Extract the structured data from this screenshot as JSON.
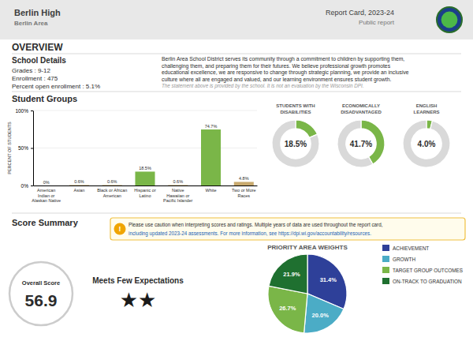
{
  "header": {
    "title": "Berlin High",
    "subtitle": "Berlin Area",
    "report_title": "Report Card, 2023-24",
    "report_note": "Public report"
  },
  "overview": {
    "title": "OVERVIEW",
    "details_title": "School Details",
    "details": [
      "Grades :  9-12",
      "Enrollment :  475",
      "Percent open enrollment :  5.1%"
    ],
    "statement": [
      "Berlin Area School District serves its community through a commitment to children by supporting them,",
      "challenging them, and preparing them for their futures. We believe professional growth promotes",
      "educational excellence, we are responsive to change through strategic planning, we provide an inclusive",
      "culture where all are engaged and valued, and our learning environment ensures student growth."
    ],
    "disclaimer": "The statement above is provided by the school. It is not an evaluation by the Wisconsin DPI."
  },
  "score_summary": {
    "title": "Score Summary",
    "caution_icon": "!",
    "caution": [
      "Please use caution when interpreting scores and ratings. Multiple years of data are used throughout the report card,",
      "including updated 2023-24 assessments. For more information, see https://dpi.wi.gov/accountability/resources."
    ],
    "overall_score_label": "Overall Score",
    "overall_score": 56.9,
    "rating": "Meets Few Expectations",
    "rating_stars": "★★"
  },
  "chart_data": [
    {
      "type": "bar",
      "title": "Student Groups",
      "y_label": "PERCENT OF STUDENTS",
      "categories": [
        "American\nIndian or\nAlaskan Native",
        "Asian",
        "Black or African\nAmerican",
        "Hispanic or\nLatino",
        "Native\nHawaiian or\nPacific Islander",
        "White",
        "Two or More\nRaces"
      ],
      "values": [
        0.0,
        0.6,
        0.6,
        18.5,
        0.6,
        74.7,
        4.8
      ],
      "value_labels": [
        "0%",
        "0.6%",
        "0.6%",
        "18.5%",
        "0.6%",
        "74.7%",
        "4.8%"
      ],
      "colors": [
        "#c8a96e",
        "#c8a96e",
        "#c8a96e",
        "#7ab648",
        "#c8a96e",
        "#7ab648",
        "#c8a96e"
      ],
      "ylim": [
        0,
        100
      ],
      "yticks": [
        {
          "value": 0,
          "label": "0%"
        },
        {
          "value": 50,
          "label": "50%"
        },
        {
          "value": 100,
          "label": "100%"
        }
      ],
      "grid": true,
      "data_labels": true
    },
    {
      "type": "donut",
      "title": "STUDENTS WITH\nDISABILITIES",
      "values": [
        18.5,
        81.5
      ],
      "value_labels": [
        "18.5%",
        null
      ],
      "colors": [
        "#7ab648",
        "#d9d9d9"
      ],
      "data_labels": true
    },
    {
      "type": "donut",
      "title": "ECONOMICALLY\nDISADVANTAGED",
      "values": [
        41.7,
        58.3
      ],
      "value_labels": [
        "41.7%",
        null
      ],
      "colors": [
        "#7ab648",
        "#d9d9d9"
      ],
      "data_labels": true
    },
    {
      "type": "donut",
      "title": "ENGLISH\nLEARNERS",
      "values": [
        4.0,
        96.0
      ],
      "value_labels": [
        "4.0%",
        null
      ],
      "colors": [
        "#7ab648",
        "#d9d9d9"
      ],
      "data_labels": true
    },
    {
      "type": "pie",
      "title": "PRIORITY AREA WEIGHTS",
      "categories": [
        "ACHIEVEMENT",
        "GROWTH",
        "TARGET GROUP OUTCOMES",
        "ON-TRACK TO GRADUATION"
      ],
      "values": [
        31.4,
        20.0,
        26.7,
        21.9
      ],
      "value_labels": [
        "31.4%",
        "20.0%",
        "26.7%",
        "21.9%"
      ],
      "colors": [
        "#2e4099",
        "#4bacc6",
        "#7ab648",
        "#1f7030"
      ],
      "data_labels": true,
      "legend": "right"
    }
  ]
}
